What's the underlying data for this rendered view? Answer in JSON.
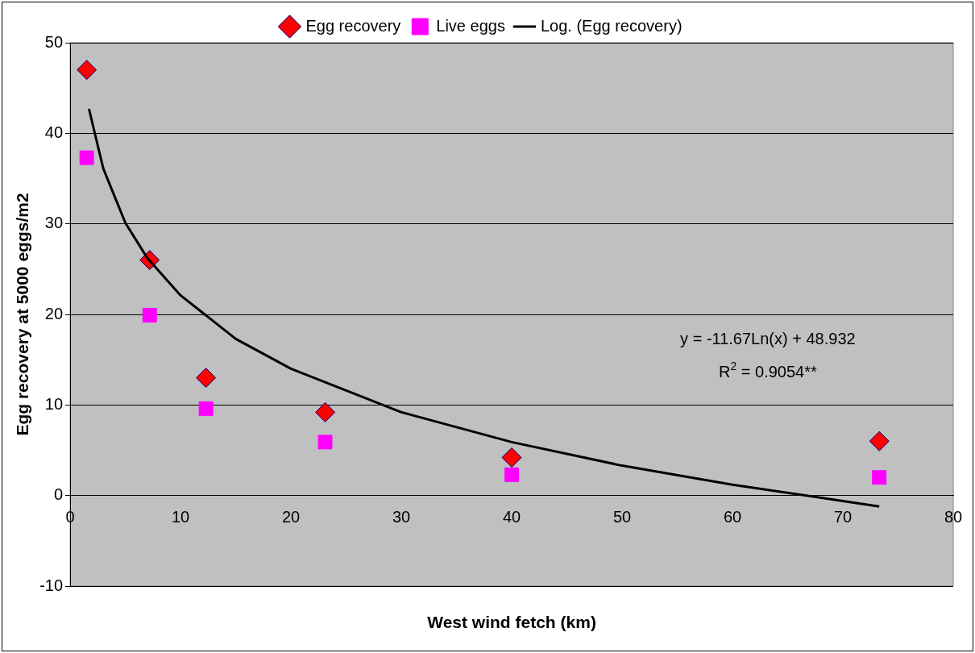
{
  "chart_data": {
    "type": "scatter",
    "xlabel": "West wind fetch (km)",
    "ylabel": "Egg recovery at 5000 eggs/m2",
    "x": [
      1.5,
      7.2,
      12.3,
      23.1,
      40,
      73.3
    ],
    "series": [
      {
        "name": "Egg recovery",
        "type": "scatter",
        "color": "#ff0000",
        "marker": "diamond",
        "values": [
          47,
          26,
          13,
          9.2,
          4.2,
          6
        ]
      },
      {
        "name": "Live eggs",
        "type": "scatter",
        "color": "#ff00ff",
        "marker": "square",
        "values": [
          37.3,
          19.9,
          9.6,
          5.9,
          2.3,
          2
        ]
      },
      {
        "name": "Log. (Egg recovery)",
        "type": "line",
        "color": "#000000",
        "marker": "none",
        "line_style": "solid",
        "x": [
          1.7,
          3,
          5,
          7,
          10,
          15,
          20,
          30,
          40,
          50,
          60,
          70,
          73.3
        ],
        "values": [
          42.7,
          36.1,
          30.1,
          26.2,
          22.1,
          17.3,
          14,
          9.2,
          5.9,
          3.3,
          1.2,
          -0.6,
          -1.2
        ]
      }
    ],
    "xlim": [
      0,
      80
    ],
    "xticks": [
      0,
      10,
      20,
      30,
      40,
      50,
      60,
      70,
      80
    ],
    "ylim": [
      -10,
      50
    ],
    "yticks": [
      -10,
      0,
      10,
      20,
      30,
      40,
      50
    ],
    "grid": "y",
    "legend": "top",
    "annotations": [
      "y = -11.67Ln(x) + 48.932",
      "R$^{2}$ = 0.9054**"
    ]
  }
}
